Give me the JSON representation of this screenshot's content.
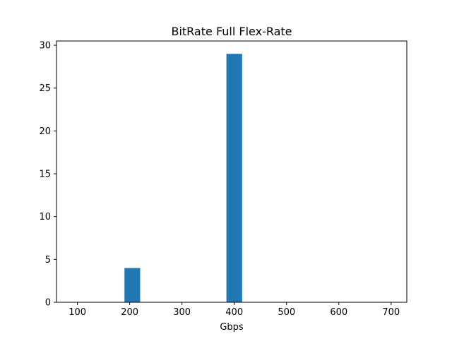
{
  "chart_data": {
    "type": "bar",
    "title": "BitRate Full Flex-Rate",
    "xlabel": "Gbps",
    "ylabel": "",
    "xlim": [
      60,
      730
    ],
    "ylim": [
      0,
      30.5
    ],
    "xticks": [
      100,
      200,
      300,
      400,
      500,
      600,
      700
    ],
    "yticks": [
      0,
      5,
      10,
      15,
      20,
      25,
      30
    ],
    "bin_width": 30,
    "bars": [
      {
        "x_start": 190,
        "x_end": 220,
        "value": 4
      },
      {
        "x_start": 385,
        "x_end": 415,
        "value": 29
      }
    ],
    "color": "#1f77b4",
    "grid": false
  }
}
